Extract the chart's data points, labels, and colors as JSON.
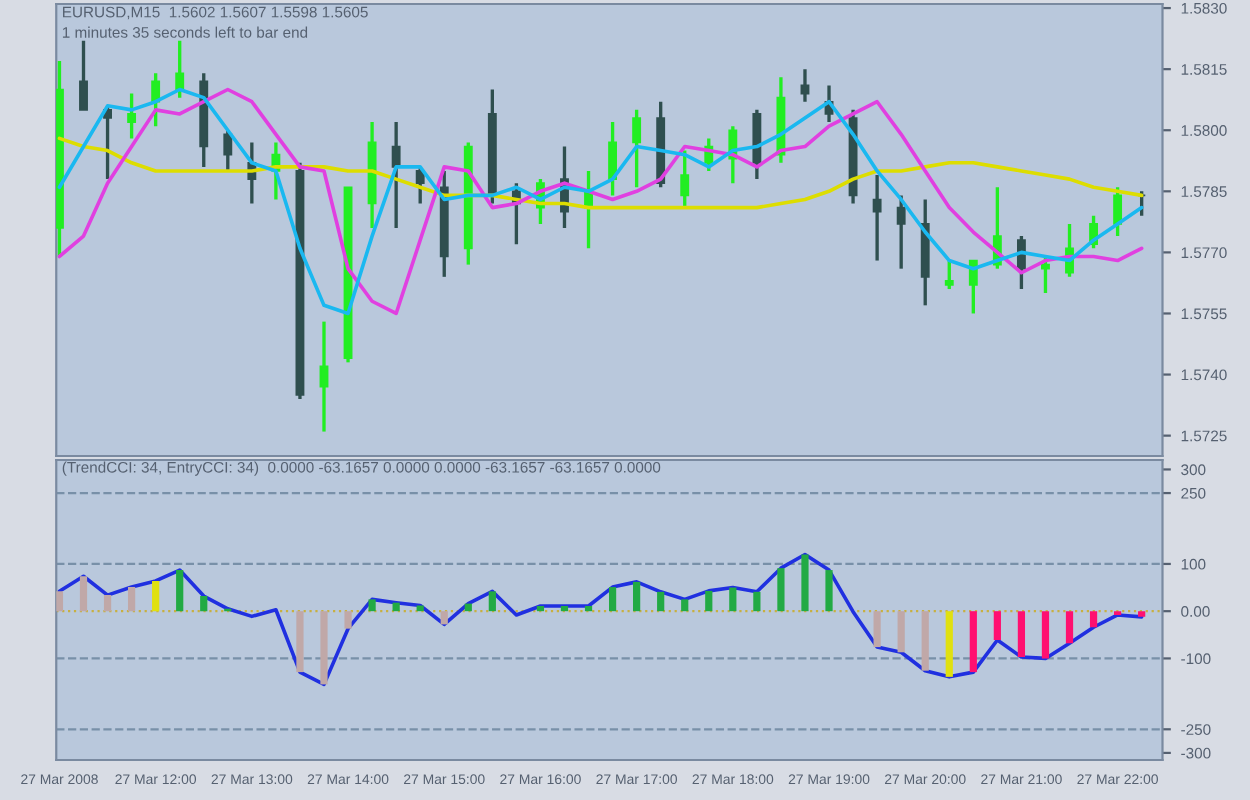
{
  "chart_data": [
    {
      "type": "candlestick",
      "x": [
        "2008-03-27T11:00",
        "2008-03-27T11:15",
        "2008-03-27T11:30",
        "2008-03-27T11:45",
        "2008-03-27T12:00",
        "2008-03-27T12:15",
        "2008-03-27T12:30",
        "2008-03-27T12:45",
        "2008-03-27T13:00",
        "2008-03-27T13:15",
        "2008-03-27T13:30",
        "2008-03-27T13:45",
        "2008-03-27T14:00",
        "2008-03-27T14:15",
        "2008-03-27T14:30",
        "2008-03-27T14:45",
        "2008-03-27T15:00",
        "2008-03-27T15:15",
        "2008-03-27T15:30",
        "2008-03-27T15:45",
        "2008-03-27T16:00",
        "2008-03-27T16:15",
        "2008-03-27T16:30",
        "2008-03-27T16:45",
        "2008-03-27T17:00",
        "2008-03-27T17:15",
        "2008-03-27T17:30",
        "2008-03-27T17:45",
        "2008-03-27T18:00",
        "2008-03-27T18:15",
        "2008-03-27T18:30",
        "2008-03-27T18:45",
        "2008-03-27T19:00",
        "2008-03-27T19:15",
        "2008-03-27T19:30",
        "2008-03-27T19:45",
        "2008-03-27T20:00",
        "2008-03-27T20:15",
        "2008-03-27T20:30",
        "2008-03-27T20:45",
        "2008-03-27T21:00",
        "2008-03-27T21:15",
        "2008-03-27T21:30",
        "2008-03-27T21:45",
        "2008-03-27T22:00",
        "2008-03-27T22:15"
      ],
      "ohlc": [
        [
          1.5776,
          1.5817,
          1.5769,
          1.581
        ],
        [
          1.5812,
          1.5822,
          1.5805,
          1.5805
        ],
        [
          1.5805,
          1.5806,
          1.5788,
          1.5803
        ],
        [
          1.5802,
          1.5809,
          1.5798,
          1.5804
        ],
        [
          1.5807,
          1.5814,
          1.5801,
          1.5812
        ],
        [
          1.581,
          1.5822,
          1.5808,
          1.5814
        ],
        [
          1.5812,
          1.5814,
          1.5791,
          1.5796
        ],
        [
          1.5799,
          1.58,
          1.579,
          1.5794
        ],
        [
          1.5792,
          1.5797,
          1.5782,
          1.5788
        ],
        [
          1.579,
          1.5797,
          1.5783,
          1.5794
        ],
        [
          1.579,
          1.5792,
          1.5734,
          1.5735
        ],
        [
          1.5737,
          1.5753,
          1.5726,
          1.5742
        ],
        [
          1.5744,
          1.5786,
          1.5743,
          1.5786
        ],
        [
          1.5782,
          1.5802,
          1.5776,
          1.5797
        ],
        [
          1.5796,
          1.5802,
          1.5776,
          1.5791
        ],
        [
          1.579,
          1.5791,
          1.5782,
          1.5787
        ],
        [
          1.5786,
          1.579,
          1.5764,
          1.5769
        ],
        [
          1.5771,
          1.5797,
          1.5767,
          1.5796
        ],
        [
          1.5804,
          1.581,
          1.5782,
          1.5784
        ],
        [
          1.5785,
          1.5787,
          1.5772,
          1.5782
        ],
        [
          1.5781,
          1.5788,
          1.5777,
          1.5787
        ],
        [
          1.5788,
          1.5796,
          1.5776,
          1.578
        ],
        [
          1.5781,
          1.579,
          1.5771,
          1.5785
        ],
        [
          1.5788,
          1.5802,
          1.5784,
          1.5797
        ],
        [
          1.5797,
          1.5805,
          1.5786,
          1.5803
        ],
        [
          1.5803,
          1.5807,
          1.5786,
          1.5787
        ],
        [
          1.5784,
          1.5795,
          1.5781,
          1.5789
        ],
        [
          1.5792,
          1.5798,
          1.579,
          1.5796
        ],
        [
          1.5793,
          1.5801,
          1.5787,
          1.58
        ],
        [
          1.5804,
          1.5805,
          1.5788,
          1.5792
        ],
        [
          1.5794,
          1.5813,
          1.5792,
          1.5808
        ],
        [
          1.5811,
          1.5815,
          1.5807,
          1.5809
        ],
        [
          1.5807,
          1.5811,
          1.5802,
          1.5804
        ],
        [
          1.5803,
          1.5805,
          1.5782,
          1.5784
        ],
        [
          1.5783,
          1.5789,
          1.5768,
          1.578
        ],
        [
          1.5781,
          1.5784,
          1.5766,
          1.5777
        ],
        [
          1.5777,
          1.5783,
          1.5757,
          1.5764
        ],
        [
          1.5762,
          1.5768,
          1.5761,
          1.5763
        ],
        [
          1.5762,
          1.5768,
          1.5755,
          1.5768
        ],
        [
          1.5767,
          1.5786,
          1.5766,
          1.5774
        ],
        [
          1.5773,
          1.5774,
          1.5761,
          1.5766
        ],
        [
          1.5766,
          1.5769,
          1.576,
          1.5767
        ],
        [
          1.5765,
          1.5777,
          1.5764,
          1.5771
        ],
        [
          1.5772,
          1.5779,
          1.5771,
          1.5777
        ],
        [
          1.5777,
          1.5786,
          1.5774,
          1.5784
        ],
        [
          1.5784,
          1.5785,
          1.5779,
          1.5784
        ]
      ],
      "colors": [
        "#22ee22",
        "#2f4f4f",
        "#2f4f4f",
        "#22ee22",
        "#22ee22",
        "#22ee22",
        "#2f4f4f",
        "#2f4f4f",
        "#2f4f4f",
        "#22ee22",
        "#2f4f4f",
        "#22ee22",
        "#22ee22",
        "#22ee22",
        "#2f4f4f",
        "#2f4f4f",
        "#2f4f4f",
        "#22ee22",
        "#2f4f4f",
        "#2f4f4f",
        "#22ee22",
        "#2f4f4f",
        "#22ee22",
        "#22ee22",
        "#22ee22",
        "#2f4f4f",
        "#22ee22",
        "#22ee22",
        "#22ee22",
        "#2f4f4f",
        "#22ee22",
        "#2f4f4f",
        "#2f4f4f",
        "#2f4f4f",
        "#2f4f4f",
        "#2f4f4f",
        "#2f4f4f",
        "#22ee22",
        "#22ee22",
        "#22ee22",
        "#2f4f4f",
        "#22ee22",
        "#22ee22",
        "#22ee22",
        "#22ee22",
        "#2f4f4f"
      ],
      "series": [
        {
          "type": "line",
          "color": "#dddd00",
          "values": [
            1.5798,
            1.5796,
            1.5795,
            1.5792,
            1.579,
            1.579,
            1.579,
            1.579,
            1.579,
            1.5791,
            1.5791,
            1.5791,
            1.579,
            1.579,
            1.5788,
            1.5786,
            1.5784,
            1.5784,
            1.5784,
            1.5783,
            1.5782,
            1.5782,
            1.5781,
            1.5781,
            1.5781,
            1.5781,
            1.5781,
            1.5781,
            1.5781,
            1.5781,
            1.5782,
            1.5783,
            1.5785,
            1.5788,
            1.579,
            1.579,
            1.5791,
            1.5792,
            1.5792,
            1.5791,
            1.579,
            1.5789,
            1.5788,
            1.5786,
            1.5785,
            1.5784
          ]
        },
        {
          "type": "line",
          "color": "#e040e0",
          "values": [
            1.5769,
            1.5774,
            1.5787,
            1.5796,
            1.5805,
            1.5804,
            1.5807,
            1.581,
            1.5807,
            1.5799,
            1.5791,
            1.579,
            1.5766,
            1.5758,
            1.5755,
            1.5773,
            1.5791,
            1.579,
            1.5781,
            1.5782,
            1.5785,
            1.5787,
            1.5785,
            1.5783,
            1.5785,
            1.5788,
            1.5796,
            1.5795,
            1.5794,
            1.5791,
            1.5795,
            1.5796,
            1.5801,
            1.5804,
            1.5807,
            1.5799,
            1.579,
            1.5781,
            1.5775,
            1.577,
            1.5765,
            1.5768,
            1.5769,
            1.5769,
            1.5768,
            1.5771
          ]
        },
        {
          "type": "line",
          "color": "#1ab8f0",
          "values": [
            1.5786,
            1.5796,
            1.5806,
            1.5805,
            1.5807,
            1.581,
            1.5808,
            1.58,
            1.5792,
            1.579,
            1.5771,
            1.5757,
            1.5755,
            1.5774,
            1.5791,
            1.5791,
            1.5783,
            1.5784,
            1.5784,
            1.5786,
            1.5783,
            1.5786,
            1.5785,
            1.5788,
            1.5796,
            1.5795,
            1.5794,
            1.5791,
            1.5795,
            1.5796,
            1.5799,
            1.5803,
            1.5807,
            1.5799,
            1.579,
            1.5783,
            1.5775,
            1.5768,
            1.5766,
            1.5768,
            1.577,
            1.5769,
            1.5768,
            1.5773,
            1.5777,
            1.5781
          ]
        }
      ],
      "xlim": [
        "2008-03-27T10:58",
        "2008-03-27T22:28"
      ],
      "ylim": [
        1.572,
        1.5831
      ],
      "yticks": [
        {
          "value": 1.5725,
          "label": "1.5725"
        },
        {
          "value": 1.574,
          "label": "1.5740"
        },
        {
          "value": 1.5755,
          "label": "1.5755"
        },
        {
          "value": 1.577,
          "label": "1.5770"
        },
        {
          "value": 1.5785,
          "label": "1.5785"
        },
        {
          "value": 1.58,
          "label": "1.5800"
        },
        {
          "value": 1.5815,
          "label": "1.5815"
        },
        {
          "value": 1.583,
          "label": "1.5830"
        }
      ],
      "tick_labels": "y",
      "annotations": [
        "EURUSD,M15  1.5602 1.5607 1.5598 1.5605",
        "1 minutes 35 seconds left to bar end"
      ]
    },
    {
      "type": "line",
      "x": [
        "2008-03-27T11:00",
        "2008-03-27T11:15",
        "2008-03-27T11:30",
        "2008-03-27T11:45",
        "2008-03-27T12:00",
        "2008-03-27T12:15",
        "2008-03-27T12:30",
        "2008-03-27T12:45",
        "2008-03-27T13:00",
        "2008-03-27T13:15",
        "2008-03-27T13:30",
        "2008-03-27T13:45",
        "2008-03-27T14:00",
        "2008-03-27T14:15",
        "2008-03-27T14:30",
        "2008-03-27T14:45",
        "2008-03-27T15:00",
        "2008-03-27T15:15",
        "2008-03-27T15:30",
        "2008-03-27T15:45",
        "2008-03-27T16:00",
        "2008-03-27T16:15",
        "2008-03-27T16:30",
        "2008-03-27T16:45",
        "2008-03-27T17:00",
        "2008-03-27T17:15",
        "2008-03-27T17:30",
        "2008-03-27T17:45",
        "2008-03-27T18:00",
        "2008-03-27T18:15",
        "2008-03-27T18:30",
        "2008-03-27T18:45",
        "2008-03-27T19:00",
        "2008-03-27T19:15",
        "2008-03-27T19:30",
        "2008-03-27T19:45",
        "2008-03-27T20:00",
        "2008-03-27T20:15",
        "2008-03-27T20:30",
        "2008-03-27T20:45",
        "2008-03-27T21:00",
        "2008-03-27T21:15",
        "2008-03-27T21:30",
        "2008-03-27T21:45",
        "2008-03-27T22:00",
        "2008-03-27T22:15"
      ],
      "series": [
        {
          "type": "bar",
          "colors": [
            "#c0a8a8",
            "#c0a8a8",
            "#c0a8a8",
            "#c0a8a8",
            "#e0e010",
            "#22aa44",
            "#22aa44",
            "#22aa44",
            "#c0a8a8",
            "#c0a8a8",
            "#c0a8a8",
            "#c0a8a8",
            "#c0a8a8",
            "#22aa44",
            "#22aa44",
            "#22aa44",
            "#c0a8a8",
            "#22aa44",
            "#22aa44",
            "#22aa44",
            "#22aa44",
            "#22aa44",
            "#22aa44",
            "#22aa44",
            "#22aa44",
            "#22aa44",
            "#22aa44",
            "#22aa44",
            "#22aa44",
            "#22aa44",
            "#22aa44",
            "#22aa44",
            "#22aa44",
            "#c0a8a8",
            "#c0a8a8",
            "#c0a8a8",
            "#c0a8a8",
            "#e0e010",
            "#ff1070",
            "#ff1070",
            "#ff1070",
            "#ff1070",
            "#ff1070",
            "#ff1070",
            "#ff1070",
            "#ff1070"
          ],
          "values": [
            42,
            74,
            34,
            51,
            64,
            87,
            32,
            5,
            null,
            null,
            -129,
            -155,
            -37,
            25,
            18,
            12,
            -28,
            16,
            42,
            null,
            11,
            11,
            11,
            51,
            62,
            41,
            25,
            43,
            50,
            41,
            91,
            120,
            87,
            null,
            -76,
            -87,
            -126,
            -139,
            -129,
            -61,
            -97,
            -100,
            -68,
            -34,
            -8,
            -12
          ]
        },
        {
          "type": "line",
          "color": "#2030e0",
          "values": [
            42,
            74,
            34,
            51,
            64,
            87,
            32,
            5,
            -11,
            3,
            -129,
            -155,
            -37,
            25,
            18,
            12,
            -28,
            16,
            42,
            -8,
            11,
            11,
            11,
            51,
            62,
            41,
            25,
            43,
            50,
            41,
            91,
            120,
            87,
            -1,
            -76,
            -87,
            -126,
            -139,
            -129,
            -61,
            -97,
            -100,
            -68,
            -34,
            -8,
            -12
          ]
        }
      ],
      "xlim": [
        "2008-03-27T10:58",
        "2008-03-27T22:28"
      ],
      "xticks": [
        {
          "value": "2008-03-27T11:00",
          "label": "27 Mar 2008"
        },
        {
          "value": "2008-03-27T12:00",
          "label": "27 Mar 12:00"
        },
        {
          "value": "2008-03-27T13:00",
          "label": "27 Mar 13:00"
        },
        {
          "value": "2008-03-27T14:00",
          "label": "27 Mar 14:00"
        },
        {
          "value": "2008-03-27T15:00",
          "label": "27 Mar 15:00"
        },
        {
          "value": "2008-03-27T16:00",
          "label": "27 Mar 16:00"
        },
        {
          "value": "2008-03-27T17:00",
          "label": "27 Mar 17:00"
        },
        {
          "value": "2008-03-27T18:00",
          "label": "27 Mar 18:00"
        },
        {
          "value": "2008-03-27T19:00",
          "label": "27 Mar 19:00"
        },
        {
          "value": "2008-03-27T20:00",
          "label": "27 Mar 20:00"
        },
        {
          "value": "2008-03-27T21:00",
          "label": "27 Mar 21:00"
        },
        {
          "value": "2008-03-27T22:00",
          "label": "27 Mar 22:00"
        }
      ],
      "ylim": [
        -315,
        320
      ],
      "yticks": [
        -300,
        -250,
        -100,
        {
          "value": 0,
          "label": "0.00"
        },
        100,
        250,
        300
      ],
      "ref_lines": [
        {
          "axis": "y",
          "value": 250,
          "color": "#7890a8",
          "line_style": "dashed"
        },
        {
          "axis": "y",
          "value": 100,
          "color": "#7890a8",
          "line_style": "dashed"
        },
        {
          "axis": "y",
          "value": 0,
          "color": "#c8b040",
          "line_style": "dotted"
        },
        {
          "axis": "y",
          "value": -100,
          "color": "#7890a8",
          "line_style": "dashed"
        },
        {
          "axis": "y",
          "value": -250,
          "color": "#7890a8",
          "line_style": "dashed"
        }
      ],
      "annotations": [
        "(TrendCCI: 34, EntryCCI: 34)  0.0000 -63.1657 0.0000 0.0000 -63.1657 -63.1657 0.0000"
      ]
    }
  ]
}
